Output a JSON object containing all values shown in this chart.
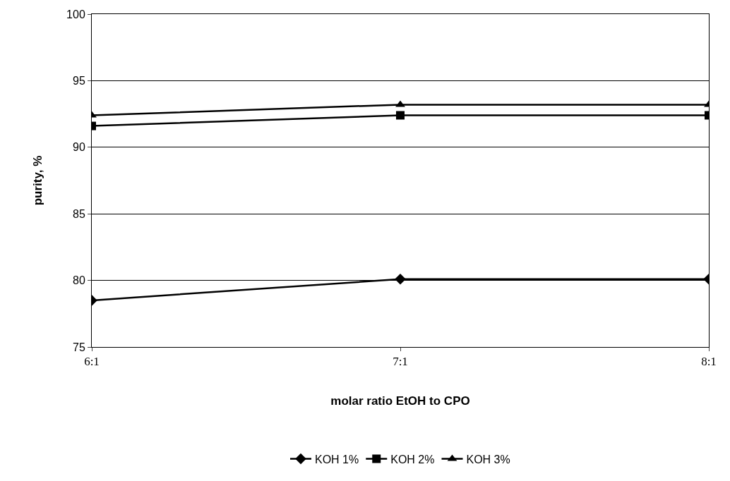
{
  "chart_data": {
    "type": "line",
    "xlabel": "molar ratio EtOH to CPO",
    "ylabel": "purity, %",
    "categories": [
      "6:1",
      "7:1",
      "8:1"
    ],
    "series": [
      {
        "name": "KOH 1%",
        "color": "#000000",
        "values": [
          78.5,
          80.1,
          80.1
        ],
        "marker": "diamond"
      },
      {
        "name": "KOH 2%",
        "color": "#000000",
        "values": [
          91.6,
          92.4,
          92.4
        ],
        "marker": "square"
      },
      {
        "name": "KOH 3%",
        "color": "#000000",
        "values": [
          92.4,
          93.2,
          93.2
        ],
        "marker": "triangle"
      }
    ],
    "ylim": [
      75,
      100
    ],
    "yticks": [
      75,
      80,
      85,
      90,
      95,
      100
    ],
    "grid": "y",
    "legend": "bottom",
    "line_style": "solid"
  }
}
